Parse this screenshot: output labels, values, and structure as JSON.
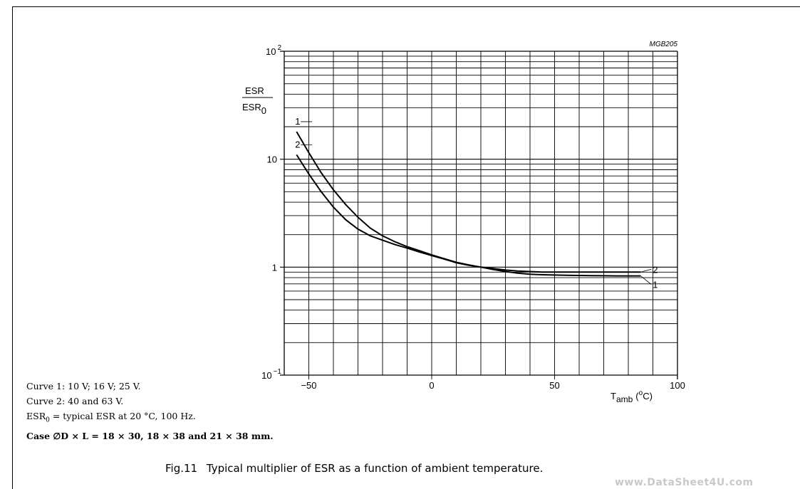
{
  "chart_data": {
    "type": "line",
    "id_label": "MGB205",
    "title": "Typical multiplier of ESR as a function of ambient temperature.",
    "figure_number": "Fig.11",
    "xlabel": "T",
    "xlabel_sub": "amb",
    "xlabel_unit": "(°C)",
    "ylabel_num": "ESR",
    "ylabel_den": "ESR",
    "ylabel_den_sub": "0",
    "x_scale": "linear",
    "y_scale": "log",
    "xlim": [
      -60,
      100
    ],
    "ylim": [
      0.1,
      100
    ],
    "grid": true,
    "x_ticks": [
      {
        "value": -50,
        "label": "−50"
      },
      {
        "value": 0,
        "label": "0"
      },
      {
        "value": 50,
        "label": "50"
      },
      {
        "value": 100,
        "label": "100"
      }
    ],
    "y_ticks": [
      {
        "value": 0.1,
        "base": "10",
        "exp": "−1"
      },
      {
        "value": 1,
        "base": "1",
        "exp": ""
      },
      {
        "value": 10,
        "base": "10",
        "exp": ""
      },
      {
        "value": 100,
        "base": "10",
        "exp": "2"
      }
    ],
    "series": [
      {
        "name": "1",
        "x": [
          -55,
          -50,
          -45,
          -40,
          -35,
          -30,
          -25,
          -20,
          -15,
          -10,
          -5,
          0,
          5,
          10,
          15,
          20,
          25,
          30,
          35,
          40,
          45,
          50,
          55,
          60,
          65,
          70,
          75,
          80,
          85
        ],
        "y": [
          18.0,
          11.5,
          7.5,
          5.2,
          3.8,
          2.9,
          2.3,
          1.95,
          1.72,
          1.55,
          1.42,
          1.3,
          1.2,
          1.11,
          1.05,
          1.0,
          0.95,
          0.91,
          0.88,
          0.86,
          0.85,
          0.845,
          0.84,
          0.838,
          0.835,
          0.832,
          0.83,
          0.83,
          0.83
        ]
      },
      {
        "name": "2",
        "x": [
          -55,
          -50,
          -45,
          -40,
          -35,
          -30,
          -25,
          -20,
          -15,
          -10,
          -5,
          0,
          5,
          10,
          15,
          20,
          25,
          30,
          35,
          40,
          45,
          50,
          55,
          60,
          65,
          70,
          75,
          80,
          85
        ],
        "y": [
          11.0,
          7.3,
          5.0,
          3.6,
          2.75,
          2.25,
          1.95,
          1.78,
          1.62,
          1.5,
          1.38,
          1.28,
          1.19,
          1.1,
          1.04,
          1.0,
          0.97,
          0.94,
          0.92,
          0.91,
          0.9,
          0.9,
          0.9,
          0.9,
          0.9,
          0.9,
          0.9,
          0.9,
          0.9
        ]
      }
    ]
  },
  "notes": {
    "curve1": "Curve 1: 10 V; 16 V; 25 V.",
    "curve2": "Curve 2: 40 and 63 V.",
    "esr0_prefix": "ESR",
    "esr0_sub": "0",
    "esr0_text": " = typical ESR at 20 °C, 100 Hz.",
    "case": "Case ∅D × L = 18 × 30, 18 × 38 and 21 × 38 mm."
  },
  "watermark": "www.DataSheet4U.com"
}
